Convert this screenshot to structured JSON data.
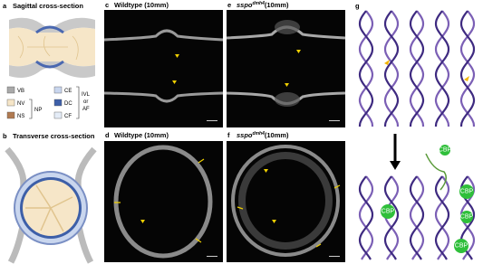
{
  "panels": {
    "a": {
      "letter": "a",
      "title": "Sagittal cross-section"
    },
    "legend": {
      "left": [
        "VB",
        "NV",
        "NS"
      ],
      "np": "NP",
      "right": [
        "CE",
        "DC",
        "CF"
      ],
      "ivl": [
        "IVL",
        "or",
        "AF"
      ]
    },
    "b": {
      "letter": "b",
      "title": "Transverse cross-section"
    },
    "c": {
      "letter": "c",
      "title": "Wildtype (10mm)"
    },
    "e": {
      "letter": "e",
      "gene": "sspo",
      "superscript": "dmh4",
      "title": "(10mm)"
    },
    "d": {
      "letter": "d",
      "title": "Wildtype (10mm)"
    },
    "f": {
      "letter": "f",
      "gene": "sspo",
      "superscript": "dmh4",
      "title": "(10mm)"
    },
    "g": {
      "letter": "g",
      "cbp": [
        "CBP",
        "CBP",
        "CBP",
        "CBP",
        "CBP"
      ]
    }
  }
}
